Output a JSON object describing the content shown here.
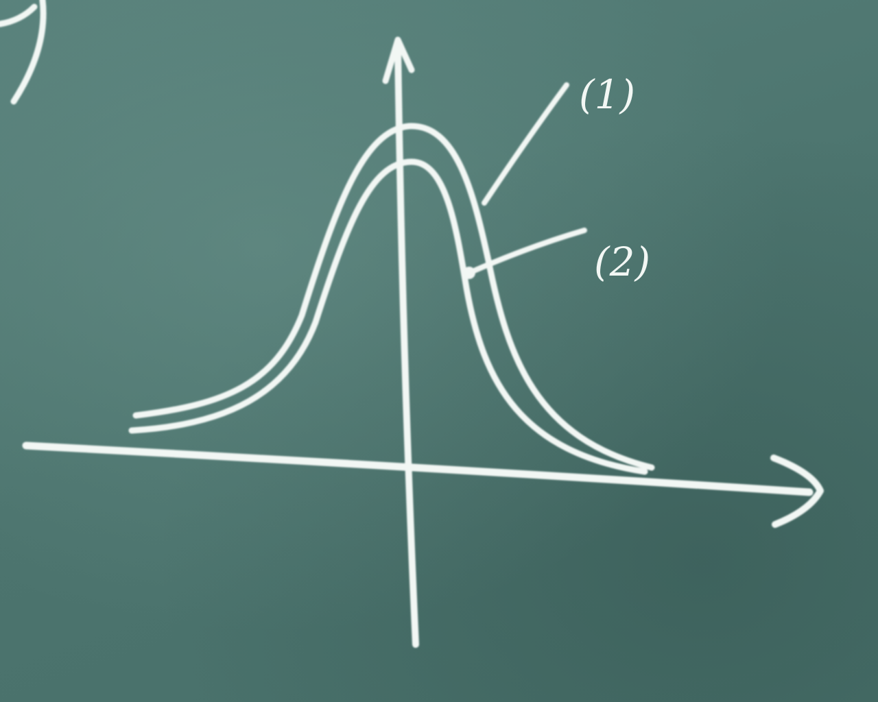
{
  "diagram": {
    "curve_labels": [
      "(1)",
      "(2)"
    ]
  },
  "colors": {
    "board": "#4f7670",
    "chalk": "#f2f7f4"
  }
}
